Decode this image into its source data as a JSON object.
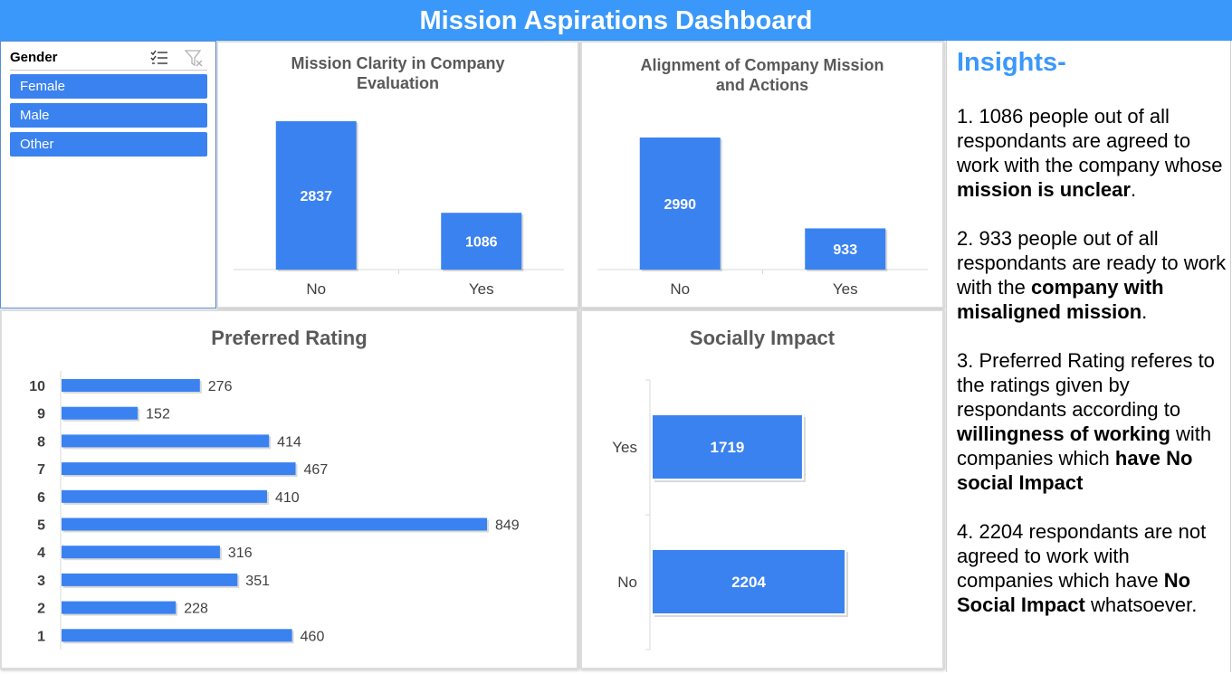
{
  "header": {
    "title": "Mission Aspirations Dashboard"
  },
  "slicer": {
    "title": "Gender",
    "multiselect_icon": "multi-select-icon",
    "clear_filter_icon": "clear-filter-icon",
    "items": [
      "Female",
      "Male",
      "Other"
    ]
  },
  "colors": {
    "header": "#3a98fb",
    "bar": "#3a82f0",
    "panel_title": "#595959",
    "insight_title": "#3a98fb"
  },
  "chart_data": [
    {
      "type": "bar",
      "title": "Mission Clarity in Company Evaluation",
      "title_line1": "Mission Clarity in Company",
      "title_line2": "Evaluation",
      "categories": [
        "No",
        "Yes"
      ],
      "values": [
        2837,
        1086
      ],
      "ylim": [
        0,
        2837
      ]
    },
    {
      "type": "bar",
      "title": "Alignment of Company Mission and Actions",
      "title_line1": "Alignment of Company Mission",
      "title_line2": "and Actions",
      "categories": [
        "No",
        "Yes"
      ],
      "values": [
        2990,
        933
      ],
      "ylim": [
        0,
        2990
      ]
    },
    {
      "type": "bar",
      "orientation": "horizontal",
      "title": "Preferred Rating",
      "categories": [
        "10",
        "9",
        "8",
        "7",
        "6",
        "5",
        "4",
        "3",
        "2",
        "1"
      ],
      "values": [
        276,
        152,
        414,
        467,
        410,
        849,
        316,
        351,
        228,
        460
      ],
      "xlim": [
        0,
        849
      ]
    },
    {
      "type": "bar",
      "orientation": "horizontal",
      "title": "Socially Impact",
      "categories": [
        "Yes",
        "No"
      ],
      "values": [
        1719,
        2204
      ],
      "xlim": [
        0,
        2204
      ]
    }
  ],
  "insights": {
    "title": "Insights-",
    "p1_a": "1. 1086 people out of all respondants are agreed to work with the company whose ",
    "p1_b": "mission is unclear",
    "p1_c": ".",
    "p2_a": "2. 933 people out of all respondants are ready to work with the ",
    "p2_b": "company with misaligned mission",
    "p2_c": ".",
    "p3_a": "3. Preferred Rating referes to the ratings given by respondants according to ",
    "p3_b": "willingness of working",
    "p3_c": " with companies which ",
    "p3_d": "have No social Impact",
    "p4_a": "4. 2204 respondants are not agreed to work with companies which have ",
    "p4_b": "No Social Impact",
    "p4_c": " whatsoever."
  }
}
